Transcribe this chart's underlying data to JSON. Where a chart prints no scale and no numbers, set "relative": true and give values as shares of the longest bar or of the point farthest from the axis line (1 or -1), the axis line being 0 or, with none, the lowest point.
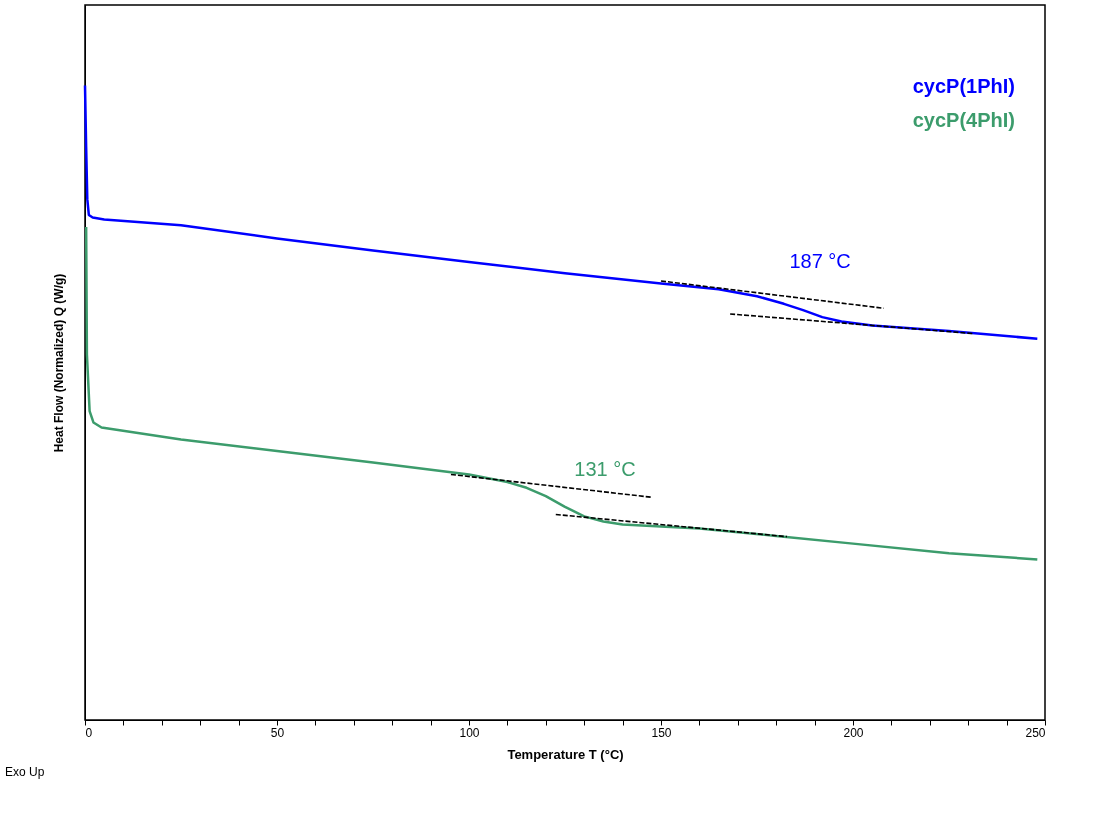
{
  "chart_data": {
    "type": "line",
    "relative": true,
    "xlabel": "Temperature  T  (°C)",
    "ylabel": "Heat Flow (Normalized)  Q  (W/g)",
    "xlim": [
      0,
      250
    ],
    "xticks": [
      0,
      {
        "value": 10,
        "label": null
      },
      {
        "value": 20,
        "label": null
      },
      {
        "value": 30,
        "label": null
      },
      {
        "value": 40,
        "label": null
      },
      50,
      {
        "value": 60,
        "label": null
      },
      {
        "value": 70,
        "label": null
      },
      {
        "value": 80,
        "label": null
      },
      {
        "value": 90,
        "label": null
      },
      100,
      {
        "value": 110,
        "label": null
      },
      {
        "value": 120,
        "label": null
      },
      {
        "value": 130,
        "label": null
      },
      {
        "value": 140,
        "label": null
      },
      150,
      {
        "value": 160,
        "label": null
      },
      {
        "value": 170,
        "label": null
      },
      {
        "value": 180,
        "label": null
      },
      {
        "value": 190,
        "label": null
      },
      200,
      {
        "value": 210,
        "label": null
      },
      {
        "value": 220,
        "label": null
      },
      {
        "value": 230,
        "label": null
      },
      {
        "value": 240,
        "label": null
      },
      250
    ],
    "tick_labels": "x",
    "grid": false,
    "legend": "top right",
    "line_style": "solid",
    "series": [
      {
        "name": "cycP(1PhI)",
        "color": "#0000ff",
        "x": [
          0,
          0.3,
          0.6,
          1,
          2,
          5,
          25,
          50,
          75,
          100,
          125,
          150,
          165,
          175,
          182,
          187,
          192,
          197,
          205,
          225,
          248
        ],
        "values": [
          1.0,
          0.903,
          0.821,
          0.796,
          0.792,
          0.789,
          0.78,
          0.759,
          0.74,
          0.722,
          0.704,
          0.688,
          0.679,
          0.668,
          0.656,
          0.646,
          0.635,
          0.628,
          0.622,
          0.613,
          0.601
        ]
      },
      {
        "name": "cycP(4PhI)",
        "color": "#3c9c6c",
        "x": [
          0.3,
          0.5,
          1.2,
          2.2,
          4.3,
          25,
          50,
          75,
          100,
          110,
          115,
          120,
          125,
          130,
          135,
          140,
          160,
          180,
          200,
          225,
          248
        ],
        "values": [
          0.777,
          0.576,
          0.487,
          0.469,
          0.461,
          0.442,
          0.424,
          0.406,
          0.387,
          0.375,
          0.366,
          0.353,
          0.336,
          0.321,
          0.313,
          0.308,
          0.302,
          0.29,
          0.278,
          0.263,
          0.253
        ]
      },
      {
        "type": "line",
        "color": "#000000",
        "line_style": "dashed",
        "x": [
          150,
          208
        ],
        "values": [
          0.692,
          0.649
        ]
      },
      {
        "type": "line",
        "color": "#000000",
        "line_style": "dashed",
        "x": [
          168,
          231.5
        ],
        "values": [
          0.64,
          0.609
        ]
      },
      {
        "type": "line",
        "color": "#000000",
        "line_style": "dashed",
        "x": [
          95.3,
          147.7
        ],
        "values": [
          0.387,
          0.351
        ]
      },
      {
        "type": "line",
        "color": "#000000",
        "line_style": "dashed",
        "x": [
          122.6,
          182.8
        ],
        "values": [
          0.324,
          0.289
        ]
      }
    ],
    "annotations": [
      {
        "text": "187 °C",
        "x": 187,
        "y": 0.646
      },
      {
        "text": "131 °C",
        "x": 131,
        "y": 0.319
      },
      "Exo Up"
    ]
  }
}
